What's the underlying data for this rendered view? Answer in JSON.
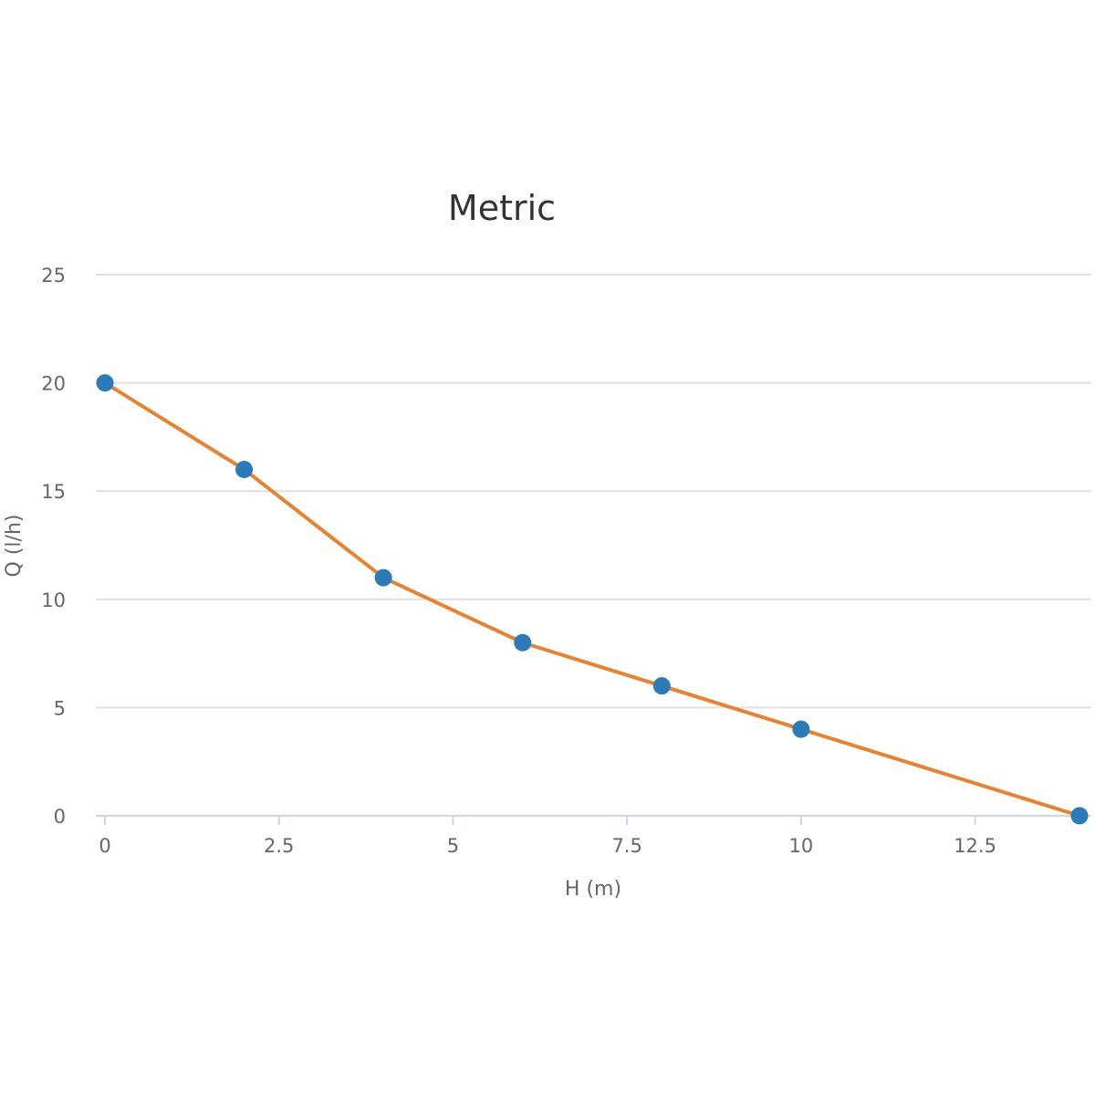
{
  "chart_data": {
    "type": "line",
    "title": "Metric",
    "xlabel": "H (m)",
    "ylabel": "Q (l/h)",
    "xlim": [
      0,
      14
    ],
    "ylim": [
      0,
      25
    ],
    "x_ticks": [
      0,
      2.5,
      5,
      7.5,
      10,
      12.5
    ],
    "x_tick_labels": [
      "0",
      "2.5",
      "5",
      "7.5",
      "10",
      "12.5"
    ],
    "y_ticks": [
      0,
      5,
      10,
      15,
      20,
      25
    ],
    "y_tick_labels": [
      "0",
      "5",
      "10",
      "15",
      "20",
      "25"
    ],
    "grid": "horizontal",
    "legend": "none",
    "series": [
      {
        "x": [
          0,
          2,
          4,
          6,
          8,
          10,
          14
        ],
        "y": [
          20,
          16,
          11,
          8,
          6,
          4,
          0
        ],
        "line_color": "#e8822e",
        "marker_color": "#2a7bb8"
      }
    ]
  },
  "colors": {
    "background": "#ffffff",
    "grid": "#e0e0e0",
    "x_axis_line": "#ccd6eb",
    "title_text": "#333333",
    "axis_text": "#666666"
  }
}
